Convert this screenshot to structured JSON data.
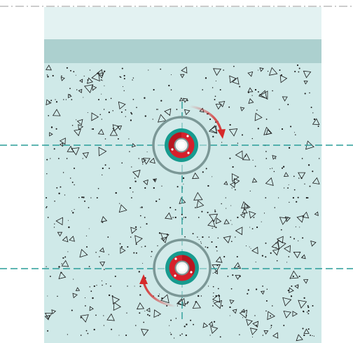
{
  "diagram": {
    "colors": {
      "background": "#ffffff",
      "top_band": "#e3f2f2",
      "mid_band": "#acd0cf",
      "concrete": "#cfe9e8",
      "aggregate": "#1a1a1a",
      "centerline": "#2a9d99",
      "ring_outer": "#7b9796",
      "ring_teal": "#179b8f",
      "anchor_red": "#d6202c",
      "arrow_red": "#d62a2a",
      "frame_line": "#9a9a9a"
    },
    "icons": {
      "anchor_top": "anchor-bolt-icon",
      "anchor_bottom": "anchor-bolt-icon",
      "rotation_clockwise": "clockwise-arrow-icon",
      "rotation_counterclockwise": "counterclockwise-arrow-icon"
    }
  }
}
